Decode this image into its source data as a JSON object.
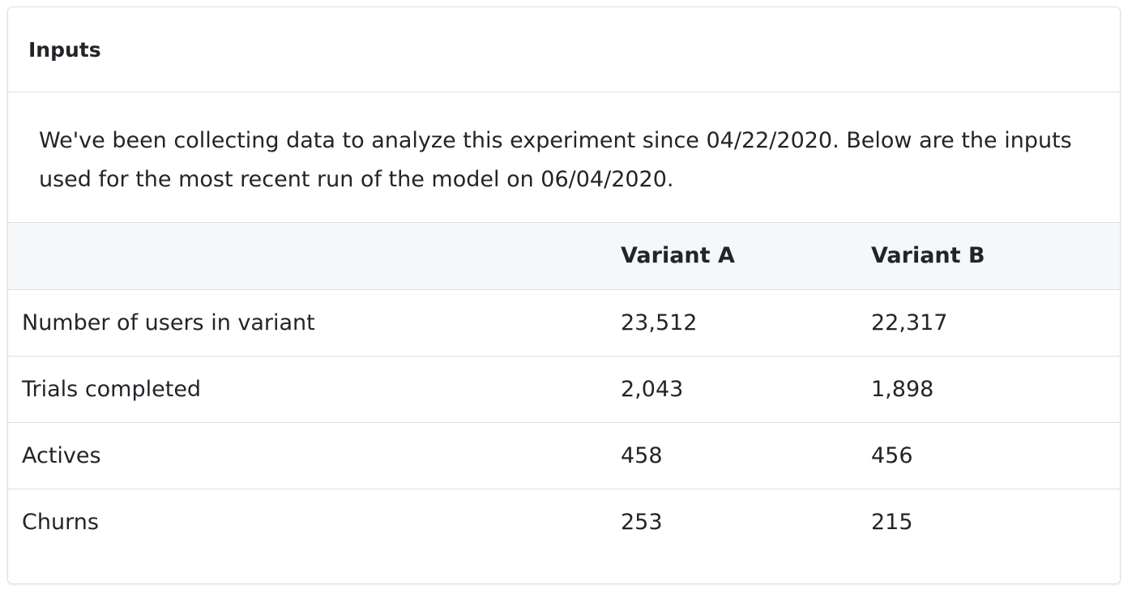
{
  "header": {
    "title": "Inputs"
  },
  "description": "We've been collecting data to analyze this experiment since 04/22/2020. Below are the inputs used for the most recent run of the model on 06/04/2020.",
  "table": {
    "columns": [
      "Variant A",
      "Variant B"
    ],
    "rows": [
      [
        "Number of users in variant",
        "23,512",
        "22,317"
      ],
      [
        "Trials completed",
        "2,043",
        "1,898"
      ],
      [
        "Actives",
        "458",
        "456"
      ],
      [
        "Churns",
        "253",
        "215"
      ]
    ]
  }
}
